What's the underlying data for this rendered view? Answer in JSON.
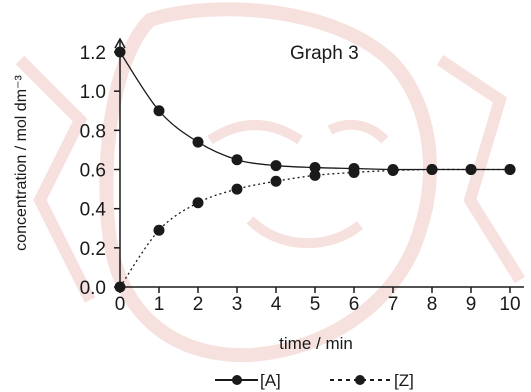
{
  "chart_data": {
    "type": "line",
    "title": "Graph 3",
    "xlabel": "time / min",
    "ylabel": "concentration / mol dm⁻³",
    "xlim": [
      0,
      10
    ],
    "ylim": [
      0,
      1.2
    ],
    "x_ticks": [
      "0",
      "1",
      "2",
      "3",
      "4",
      "5",
      "6",
      "7",
      "8",
      "9",
      "10"
    ],
    "y_ticks": [
      "0.0",
      "0.2",
      "0.4",
      "0.6",
      "0.8",
      "1.0",
      "1.2"
    ],
    "grid": false,
    "legend_position": "bottom",
    "x": [
      0,
      1,
      2,
      3,
      4,
      5,
      6,
      7,
      8,
      9,
      10
    ],
    "series": [
      {
        "name": "[A]",
        "style": "solid",
        "values": [
          1.2,
          0.9,
          0.74,
          0.65,
          0.62,
          0.61,
          0.605,
          0.6,
          0.6,
          0.6,
          0.6
        ]
      },
      {
        "name": "[Z]",
        "style": "dotted",
        "values": [
          0.0,
          0.29,
          0.43,
          0.5,
          0.54,
          0.57,
          0.585,
          0.595,
          0.6,
          0.6,
          0.6
        ]
      }
    ],
    "watermark_color": "#f2c9c4",
    "mark_color": "#1a1a1a"
  }
}
